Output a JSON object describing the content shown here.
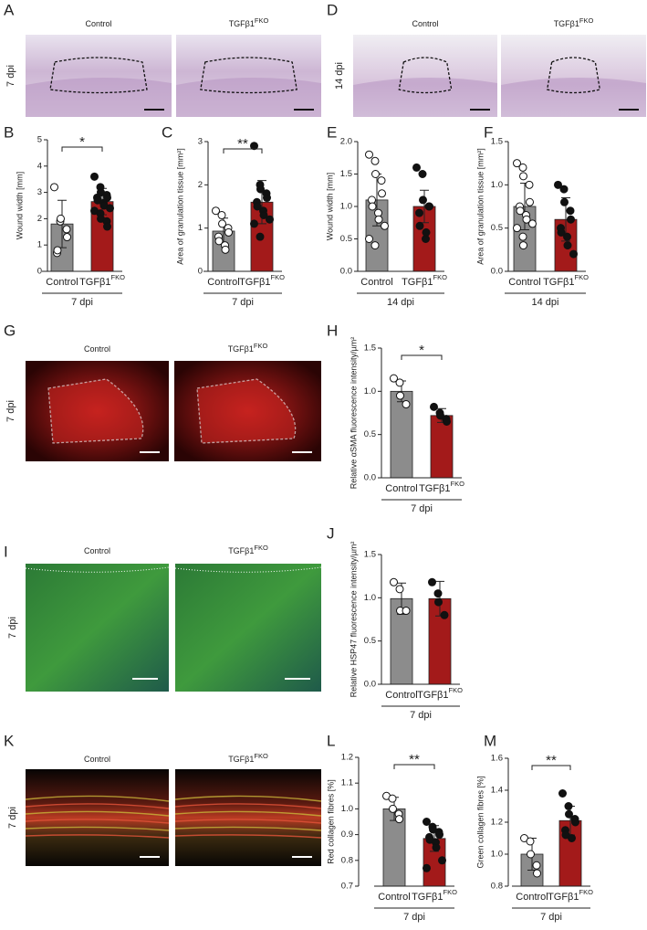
{
  "image_panels": [
    {
      "letter": "A",
      "titles": [
        "Control",
        "TGFβ1"
      ],
      "superscript": "FKO",
      "side_label": "7 dpi"
    },
    {
      "letter": "D",
      "titles": [
        "Control",
        "TGFβ1"
      ],
      "superscript": "FKO",
      "side_label": "14 dpi"
    },
    {
      "letter": "G",
      "titles": [
        "Control",
        "TGFβ1"
      ],
      "superscript": "FKO",
      "side_label": "7 dpi"
    },
    {
      "letter": "I",
      "titles": [
        "Control",
        "TGFβ1"
      ],
      "superscript": "FKO",
      "side_label": "7 dpi"
    },
    {
      "letter": "K",
      "titles": [
        "Control",
        "TGFβ1"
      ],
      "superscript": "FKO",
      "side_label": "7 dpi"
    }
  ],
  "chart_data": [
    {
      "type": "bar",
      "panel": "B",
      "ylabel": "Wound width [mm]",
      "categories": [
        "Control",
        "TGFβ1"
      ],
      "superscript": "FKO",
      "group_label": "7 dpi",
      "significance": "*",
      "colors": [
        "#8c8c8c",
        "#a31a1a"
      ],
      "values": [
        1.8,
        2.65
      ],
      "errors": [
        0.9,
        0.5
      ],
      "points": [
        [
          3.2,
          1.9,
          2.0,
          1.6,
          1.3,
          0.7,
          0.8
        ],
        [
          3.6,
          3.2,
          3.0,
          2.9,
          2.8,
          2.8,
          2.7,
          2.6,
          2.5,
          2.4,
          2.3,
          2.2,
          2.0,
          1.9,
          1.7
        ]
      ],
      "ylim": [
        0,
        5
      ],
      "yticks": [
        0,
        1,
        2,
        3,
        4,
        5
      ]
    },
    {
      "type": "bar",
      "panel": "C",
      "ylabel": "Area of granulation tissue [mm²]",
      "categories": [
        "Control",
        "TGFβ1"
      ],
      "superscript": "FKO",
      "group_label": "7 dpi",
      "significance": "**",
      "colors": [
        "#8c8c8c",
        "#a31a1a"
      ],
      "values": [
        0.93,
        1.6
      ],
      "errors": [
        0.3,
        0.5
      ],
      "points": [
        [
          1.4,
          1.3,
          1.1,
          1.0,
          0.9,
          0.8,
          0.7,
          0.6,
          0.5
        ],
        [
          2.9,
          2.0,
          1.9,
          1.8,
          1.7,
          1.6,
          1.5,
          1.4,
          1.3,
          1.2,
          1.1,
          0.8
        ]
      ],
      "ylim": [
        0,
        3
      ],
      "yticks": [
        0,
        1,
        2,
        3
      ]
    },
    {
      "type": "bar",
      "panel": "E",
      "ylabel": "Wound width [mm]",
      "categories": [
        "Control",
        "TGFβ1"
      ],
      "superscript": "FKO",
      "group_label": "14 dpi",
      "colors": [
        "#8c8c8c",
        "#a31a1a"
      ],
      "values": [
        1.1,
        1.0
      ],
      "errors": [
        0.4,
        0.25
      ],
      "points": [
        [
          1.8,
          1.7,
          1.5,
          1.4,
          1.2,
          1.1,
          1.0,
          0.9,
          0.8,
          0.7,
          0.5,
          0.4
        ],
        [
          1.6,
          1.5,
          1.1,
          1.0,
          1.0,
          0.9,
          0.7,
          0.5,
          0.6
        ]
      ],
      "ylim": [
        0,
        2
      ],
      "yticks": [
        {
          "value": 0,
          "label": "0.0"
        },
        0.5,
        {
          "value": 1,
          "label": "1.0"
        },
        1.5,
        {
          "value": 2,
          "label": "2.0"
        }
      ]
    },
    {
      "type": "bar",
      "panel": "F",
      "ylabel": "Area of granulation tissue [mm²]",
      "categories": [
        "Control",
        "TGFβ1"
      ],
      "superscript": "FKO",
      "group_label": "14 dpi",
      "colors": [
        "#8c8c8c",
        "#a31a1a"
      ],
      "values": [
        0.75,
        0.6
      ],
      "errors": [
        0.27,
        0.25
      ],
      "points": [
        [
          1.25,
          1.2,
          1.1,
          1.0,
          0.8,
          0.75,
          0.7,
          0.65,
          0.6,
          0.55,
          0.5,
          0.4,
          0.3
        ],
        [
          1.0,
          0.95,
          0.8,
          0.7,
          0.6,
          0.5,
          0.45,
          0.4,
          0.3,
          0.2
        ]
      ],
      "ylim": [
        0,
        1.5
      ],
      "yticks": [
        {
          "value": 0,
          "label": "0.0"
        },
        0.5,
        {
          "value": 1,
          "label": "1.0"
        },
        1.5
      ]
    },
    {
      "type": "bar",
      "panel": "H",
      "ylabel": "Relative αSMA fluorescence intensity/µm²",
      "categories": [
        "Control",
        "TGFβ1"
      ],
      "superscript": "FKO",
      "group_label": "7 dpi",
      "significance": "*",
      "colors": [
        "#8c8c8c",
        "#a31a1a"
      ],
      "values": [
        1.0,
        0.72
      ],
      "errors": [
        0.12,
        0.08
      ],
      "points": [
        [
          1.15,
          1.1,
          0.95,
          0.85
        ],
        [
          0.82,
          0.75,
          0.72,
          0.68,
          0.65
        ]
      ],
      "ylim": [
        0,
        1.5
      ],
      "yticks": [
        {
          "value": 0,
          "label": "0.0"
        },
        0.5,
        {
          "value": 1,
          "label": "1.0"
        },
        1.5
      ]
    },
    {
      "type": "bar",
      "panel": "J",
      "ylabel": "Relative HSP47 fluorescence intensity/µm²",
      "categories": [
        "Control",
        "TGFβ1"
      ],
      "superscript": "FKO",
      "group_label": "7 dpi",
      "colors": [
        "#8c8c8c",
        "#a31a1a"
      ],
      "values": [
        0.99,
        0.99
      ],
      "errors": [
        0.18,
        0.2
      ],
      "points": [
        [
          1.18,
          1.1,
          0.85,
          0.85
        ],
        [
          1.18,
          1.05,
          0.95,
          0.8
        ]
      ],
      "ylim": [
        0,
        1.5
      ],
      "yticks": [
        {
          "value": 0,
          "label": "0.0"
        },
        0.5,
        {
          "value": 1,
          "label": "1.0"
        },
        1.5
      ]
    },
    {
      "type": "bar",
      "panel": "L",
      "ylabel": "Red collagen fibres [%]",
      "categories": [
        "Control",
        "TGFβ1"
      ],
      "superscript": "FKO",
      "group_label": "7 dpi",
      "significance": "**",
      "colors": [
        "#8c8c8c",
        "#a31a1a"
      ],
      "values": [
        1.0,
        0.885
      ],
      "errors": [
        0.045,
        0.05
      ],
      "points": [
        [
          1.05,
          1.04,
          1.0,
          0.98,
          0.96
        ],
        [
          0.95,
          0.93,
          0.92,
          0.91,
          0.9,
          0.89,
          0.88,
          0.87,
          0.85,
          0.8,
          0.77
        ]
      ],
      "ylim": [
        0.7,
        1.2
      ],
      "yticks": [
        0.7,
        0.8,
        0.9,
        {
          "value": 1,
          "label": "1.0"
        },
        1.1,
        1.2
      ]
    },
    {
      "type": "bar",
      "panel": "M",
      "ylabel": "Green collagen fibres [%]",
      "categories": [
        "Control",
        "TGFβ1"
      ],
      "superscript": "FKO",
      "group_label": "7 dpi",
      "significance": "**",
      "colors": [
        "#8c8c8c",
        "#a31a1a"
      ],
      "values": [
        1.0,
        1.21
      ],
      "errors": [
        0.1,
        0.09
      ],
      "points": [
        [
          1.1,
          1.08,
          1.0,
          0.93,
          0.88
        ],
        [
          1.38,
          1.3,
          1.25,
          1.22,
          1.2,
          1.15,
          1.12,
          1.1
        ]
      ],
      "ylim": [
        0.8,
        1.6
      ],
      "yticks": [
        0.8,
        {
          "value": 1,
          "label": "1.0"
        },
        1.2,
        1.4,
        1.6
      ]
    }
  ]
}
